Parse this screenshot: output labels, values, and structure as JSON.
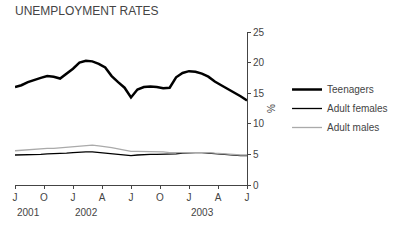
{
  "chart_data": {
    "type": "line",
    "title": "UNEMPLOYMENT RATES",
    "ylabel": "%",
    "x": [
      0,
      1,
      2,
      3,
      4,
      5,
      6,
      7,
      8,
      9,
      10,
      11,
      12,
      13,
      14,
      15,
      16,
      17,
      18,
      19,
      20,
      21,
      22,
      23,
      24,
      25,
      26,
      27,
      28,
      29,
      30,
      31,
      32,
      33,
      34,
      35,
      36
    ],
    "xlim": [
      0,
      36
    ],
    "xticks": [
      {
        "value": 0,
        "label": "J"
      },
      {
        "value": 4.5,
        "label": "O"
      },
      {
        "value": 9,
        "label": "J"
      },
      {
        "value": 13.5,
        "label": "A"
      },
      {
        "value": 18,
        "label": "J"
      },
      {
        "value": 22.5,
        "label": "O"
      },
      {
        "value": 27,
        "label": "J"
      },
      {
        "value": 31.5,
        "label": "A"
      },
      {
        "value": 36,
        "label": "J"
      }
    ],
    "ylim": [
      0,
      25
    ],
    "yticks": [
      0,
      5,
      10,
      15,
      20,
      25
    ],
    "grid": false,
    "legend": "right",
    "annotations": [
      {
        "text": "2001",
        "x": 0
      },
      {
        "text": "2002",
        "x": 9
      },
      {
        "text": "2003",
        "x": 27
      }
    ],
    "series": [
      {
        "name": "Teenagers",
        "color": "#000000",
        "values": [
          16.0,
          16.3,
          16.8,
          17.2,
          17.5,
          17.8,
          17.7,
          17.4,
          18.2,
          19.0,
          20.0,
          20.3,
          20.2,
          19.8,
          19.2,
          17.8,
          16.8,
          15.9,
          14.3,
          15.6,
          16.0,
          16.1,
          16.0,
          15.8,
          15.9,
          17.6,
          18.3,
          18.6,
          18.5,
          18.2,
          17.7,
          16.9,
          16.3,
          15.7,
          15.2,
          14.5,
          13.8
        ]
      },
      {
        "name": "Adult females",
        "color": "#000000",
        "values": [
          4.9,
          4.9,
          4.9,
          5.0,
          5.0,
          5.1,
          5.1,
          5.1,
          5.2,
          5.3,
          5.4,
          5.4,
          5.4,
          5.3,
          5.2,
          5.1,
          5.0,
          4.9,
          4.8,
          4.9,
          5.0,
          5.0,
          5.0,
          5.0,
          5.0,
          5.1,
          5.2,
          5.3,
          5.3,
          5.3,
          5.2,
          5.1,
          5.0,
          5.0,
          4.9,
          4.8,
          4.8
        ]
      },
      {
        "name": "Adult males",
        "color": "#aaaaaa",
        "values": [
          5.6,
          5.7,
          5.8,
          5.9,
          5.9,
          6.0,
          6.0,
          6.1,
          6.2,
          6.3,
          6.4,
          6.5,
          6.5,
          6.4,
          6.3,
          6.1,
          5.9,
          5.7,
          5.5,
          5.5,
          5.5,
          5.5,
          5.4,
          5.4,
          5.3,
          5.3,
          5.4,
          5.4,
          5.4,
          5.4,
          5.3,
          5.2,
          5.1,
          5.0,
          5.0,
          4.9,
          4.9
        ]
      }
    ]
  }
}
